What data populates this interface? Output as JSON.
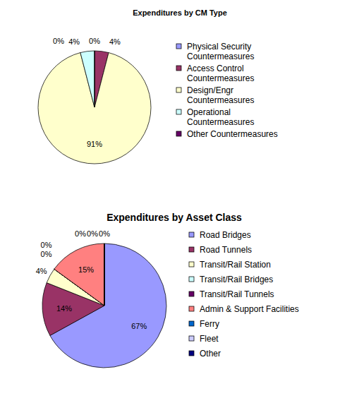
{
  "chart_data": [
    {
      "type": "pie",
      "title": "Expenditures by CM Type",
      "categories": [
        "Physical Security Countermeasures",
        "Access Control Countermeasures",
        "Design/Engr Countermeasures",
        "Operational Countermeasures",
        "Other Countermeasures"
      ],
      "values": [
        0,
        4,
        91,
        4,
        0
      ],
      "value_labels": [
        "0%",
        "4%",
        "91%",
        "4%",
        "0%"
      ],
      "colors": [
        "#9999ff",
        "#993366",
        "#ffffcc",
        "#ccffff",
        "#660066"
      ],
      "data_labels": true,
      "legend": "right"
    },
    {
      "type": "pie",
      "title": "Expenditures by Asset Class",
      "categories": [
        "Road Bridges",
        "Road Tunnels",
        "Transit/Rail Station",
        "Transit/Rail Bridges",
        "Transit/Rail Tunnels",
        "Admin & Support Facilities",
        "Ferry",
        "Fleet",
        "Other"
      ],
      "values": [
        67,
        14,
        4,
        0,
        0,
        15,
        0,
        0,
        0
      ],
      "value_labels": [
        "67%",
        "14%",
        "4%",
        "0%",
        "0%",
        "15%",
        "0%",
        "0%",
        "0%"
      ],
      "colors": [
        "#9999ff",
        "#993366",
        "#ffffcc",
        "#ccffff",
        "#660066",
        "#ff8080",
        "#0066cc",
        "#ccccff",
        "#000080"
      ],
      "data_labels": true,
      "legend": "right"
    }
  ]
}
